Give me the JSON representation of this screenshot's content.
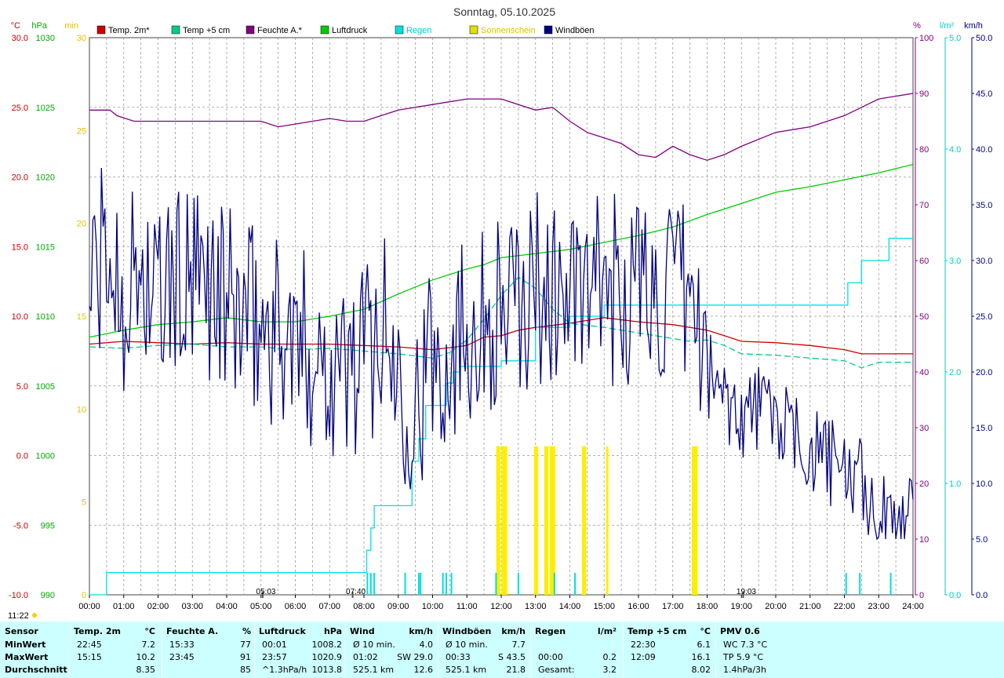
{
  "chart_data": {
    "type": "line",
    "title": "Sonntag, 05.10.2025",
    "x_ticks": [
      "00:00",
      "01:00",
      "02:00",
      "03:00",
      "04:00",
      "05:00",
      "06:00",
      "07:00",
      "08:00",
      "09:00",
      "10:00",
      "11:00",
      "12:00",
      "13:00",
      "14:00",
      "15:00",
      "16:00",
      "17:00",
      "18:00",
      "19:00",
      "20:00",
      "21:00",
      "22:00",
      "23:00",
      "24:00"
    ],
    "axes": {
      "temp": {
        "unit": "°C",
        "color": "#cc0000",
        "range": [
          -10,
          30
        ],
        "ticks": [
          "30.0",
          "25.0",
          "20.0",
          "15.0",
          "10.0",
          "5.0",
          "0.0",
          "-5.0",
          "-10.0"
        ]
      },
      "pressure": {
        "unit": "hPa",
        "color": "#00aa00",
        "range": [
          990,
          1030
        ],
        "ticks": [
          "1030",
          "1025",
          "1020",
          "1015",
          "1010",
          "1005",
          "1000",
          "995",
          "990"
        ]
      },
      "sun": {
        "unit": "min",
        "color": "#e0c000",
        "range": [
          0,
          30
        ],
        "ticks": [
          "30",
          "25",
          "20",
          "15",
          "10",
          "5",
          "0"
        ]
      },
      "humidity": {
        "unit": "%",
        "color": "#800080",
        "range": [
          0,
          100
        ],
        "ticks": [
          "100",
          "90",
          "80",
          "70",
          "60",
          "50",
          "40",
          "30",
          "20",
          "10",
          "0"
        ]
      },
      "rain": {
        "unit": "l/m²",
        "color": "#00cccc",
        "range": [
          0,
          5
        ],
        "ticks": [
          "5.0",
          "4.0",
          "3.0",
          "2.0",
          "1.0",
          "0.0"
        ]
      },
      "wind": {
        "unit": "km/h",
        "color": "#000080",
        "range": [
          0,
          50
        ],
        "ticks": [
          "50.0",
          "45.0",
          "40.0",
          "35.0",
          "30.0",
          "25.0",
          "20.0",
          "15.0",
          "10.0",
          "5.0",
          "0.0"
        ]
      }
    },
    "legend": [
      {
        "name": "Temp. 2m*",
        "color": "#cc0000"
      },
      {
        "name": "Temp +5 cm",
        "color": "#00cc88"
      },
      {
        "name": "Feuchte A.*",
        "color": "#800080"
      },
      {
        "name": "Luftdruck",
        "color": "#00cc00"
      },
      {
        "name": "Regen",
        "color": "#00e0e0"
      },
      {
        "name": "Sonnenschein",
        "color": "#e0e000"
      },
      {
        "name": "Windböen",
        "color": "#000080"
      }
    ],
    "markers": [
      {
        "label": "05:03",
        "hour": 5.05
      },
      {
        "label": "07:40",
        "hour": 7.67
      },
      {
        "label": "19:03",
        "hour": 19.05
      }
    ],
    "moon_time": "11:22",
    "series": [
      {
        "name": "Temp. 2m*",
        "axis": "temp",
        "color": "#cc0000",
        "points": [
          [
            0,
            8.0
          ],
          [
            1,
            8.2
          ],
          [
            2,
            8.1
          ],
          [
            3,
            8.0
          ],
          [
            4,
            8.1
          ],
          [
            5,
            8.0
          ],
          [
            6,
            8.0
          ],
          [
            7,
            8.0
          ],
          [
            8,
            7.9
          ],
          [
            9,
            7.8
          ],
          [
            10,
            7.6
          ],
          [
            11,
            7.9
          ],
          [
            11.5,
            8.5
          ],
          [
            12,
            8.6
          ],
          [
            12.5,
            9.0
          ],
          [
            13,
            9.2
          ],
          [
            14,
            9.5
          ],
          [
            15,
            9.9
          ],
          [
            16,
            9.6
          ],
          [
            17,
            9.4
          ],
          [
            18,
            9.0
          ],
          [
            18.5,
            8.6
          ],
          [
            19,
            8.2
          ],
          [
            20,
            8.1
          ],
          [
            21,
            7.9
          ],
          [
            22,
            7.6
          ],
          [
            22.5,
            7.3
          ],
          [
            23,
            7.3
          ],
          [
            24,
            7.3
          ]
        ]
      },
      {
        "name": "Temp +5 cm",
        "axis": "temp",
        "color": "#00cc88",
        "dashed": true,
        "points": [
          [
            0,
            7.8
          ],
          [
            1,
            7.7
          ],
          [
            2,
            7.9
          ],
          [
            3,
            8.0
          ],
          [
            4,
            7.8
          ],
          [
            5,
            7.8
          ],
          [
            6,
            7.6
          ],
          [
            7,
            7.7
          ],
          [
            8,
            7.5
          ],
          [
            9,
            7.3
          ],
          [
            10,
            7.0
          ],
          [
            10.5,
            7.4
          ],
          [
            11,
            8.3
          ],
          [
            11.5,
            9.8
          ],
          [
            12,
            11.5
          ],
          [
            12.5,
            12.8
          ],
          [
            13,
            12.0
          ],
          [
            13.5,
            10.5
          ],
          [
            14,
            9.5
          ],
          [
            15,
            9.2
          ],
          [
            16,
            8.8
          ],
          [
            17,
            8.4
          ],
          [
            17.5,
            8.2
          ],
          [
            18,
            8.3
          ],
          [
            18.5,
            7.9
          ],
          [
            19,
            7.3
          ],
          [
            20,
            7.2
          ],
          [
            21,
            7.0
          ],
          [
            22,
            6.8
          ],
          [
            22.5,
            6.3
          ],
          [
            23,
            6.7
          ],
          [
            24,
            6.7
          ]
        ]
      },
      {
        "name": "Feuchte A.*",
        "axis": "humidity",
        "color": "#800080",
        "points": [
          [
            0,
            87
          ],
          [
            0.6,
            87
          ],
          [
            0.8,
            86
          ],
          [
            1.3,
            85
          ],
          [
            2,
            85
          ],
          [
            3,
            85
          ],
          [
            4,
            85
          ],
          [
            5,
            85
          ],
          [
            5.5,
            84
          ],
          [
            6,
            84.5
          ],
          [
            6.5,
            85
          ],
          [
            7,
            85.5
          ],
          [
            7.5,
            85
          ],
          [
            8,
            85
          ],
          [
            8.5,
            86
          ],
          [
            9,
            87
          ],
          [
            10,
            88
          ],
          [
            11,
            89
          ],
          [
            12,
            89
          ],
          [
            12.5,
            88
          ],
          [
            13,
            87
          ],
          [
            13.5,
            87.5
          ],
          [
            14,
            85
          ],
          [
            14.5,
            83
          ],
          [
            15,
            82
          ],
          [
            15.5,
            81
          ],
          [
            16,
            79
          ],
          [
            16.5,
            78.5
          ],
          [
            17,
            80.5
          ],
          [
            17.5,
            79
          ],
          [
            18,
            78
          ],
          [
            18.5,
            79
          ],
          [
            19,
            80.5
          ],
          [
            20,
            83
          ],
          [
            21,
            84
          ],
          [
            22,
            86
          ],
          [
            23,
            89
          ],
          [
            24,
            90
          ]
        ]
      },
      {
        "name": "Luftdruck",
        "axis": "pressure",
        "color": "#00cc00",
        "points": [
          [
            0,
            1008.5
          ],
          [
            1,
            1009
          ],
          [
            2,
            1009.4
          ],
          [
            3,
            1009.6
          ],
          [
            4,
            1009.9
          ],
          [
            5,
            1009.6
          ],
          [
            6,
            1009.6
          ],
          [
            7,
            1010
          ],
          [
            8,
            1010.5
          ],
          [
            9,
            1011.6
          ],
          [
            10,
            1012.6
          ],
          [
            11,
            1013.4
          ],
          [
            11.5,
            1013.7
          ],
          [
            12,
            1014.2
          ],
          [
            13,
            1014.5
          ],
          [
            14,
            1014.8
          ],
          [
            15,
            1015.3
          ],
          [
            16,
            1015.8
          ],
          [
            17,
            1016.4
          ],
          [
            18,
            1017.3
          ],
          [
            19,
            1018.1
          ],
          [
            20,
            1018.9
          ],
          [
            21,
            1019.3
          ],
          [
            22,
            1019.8
          ],
          [
            23,
            1020.3
          ],
          [
            24,
            1020.9
          ]
        ]
      },
      {
        "name": "Regen",
        "axis": "rain",
        "color": "#00e0e0",
        "step": true,
        "points": [
          [
            0,
            0.0
          ],
          [
            0.5,
            0.2
          ],
          [
            1,
            0.2
          ],
          [
            8,
            0.2
          ],
          [
            8.08,
            0.4
          ],
          [
            8.2,
            0.6
          ],
          [
            8.3,
            0.8
          ],
          [
            9.2,
            0.8
          ],
          [
            9.4,
            1.2
          ],
          [
            9.6,
            1.4
          ],
          [
            9.8,
            1.7
          ],
          [
            10.4,
            1.9
          ],
          [
            10.6,
            2.0
          ],
          [
            10.8,
            2.05
          ],
          [
            11.5,
            2.05
          ],
          [
            12,
            2.1
          ],
          [
            13,
            2.4
          ],
          [
            14,
            2.5
          ],
          [
            15,
            2.6
          ],
          [
            16,
            2.6
          ],
          [
            19,
            2.6
          ],
          [
            20,
            2.6
          ],
          [
            22,
            2.6
          ],
          [
            22.1,
            2.8
          ],
          [
            22.5,
            3.0
          ],
          [
            23,
            3.0
          ],
          [
            23.3,
            3.2
          ],
          [
            24,
            3.2
          ]
        ]
      },
      {
        "name": "Windböen",
        "axis": "wind",
        "color": "#000080",
        "gusty": true,
        "points": [
          [
            0,
            28
          ],
          [
            0.5,
            30
          ],
          [
            1,
            27
          ],
          [
            1.5,
            29
          ],
          [
            2,
            26
          ],
          [
            2.5,
            28
          ],
          [
            3,
            27
          ],
          [
            3.5,
            28
          ],
          [
            4,
            26
          ],
          [
            4.5,
            25
          ],
          [
            5,
            24
          ],
          [
            5.5,
            24
          ],
          [
            6,
            22
          ],
          [
            6.5,
            22
          ],
          [
            7,
            21
          ],
          [
            7.5,
            20
          ],
          [
            8,
            22
          ],
          [
            8.5,
            24
          ],
          [
            9,
            20
          ],
          [
            9.5,
            17
          ],
          [
            10,
            21
          ],
          [
            10.5,
            22
          ],
          [
            11,
            25
          ],
          [
            11.5,
            24
          ],
          [
            12,
            26
          ],
          [
            12.5,
            25
          ],
          [
            13,
            28
          ],
          [
            13.5,
            27
          ],
          [
            14,
            27
          ],
          [
            14.5,
            26
          ],
          [
            15,
            28
          ],
          [
            15.5,
            27
          ],
          [
            16,
            28
          ],
          [
            16.5,
            27
          ],
          [
            17,
            26
          ],
          [
            17.5,
            27
          ],
          [
            18,
            20
          ],
          [
            18.5,
            18
          ],
          [
            19,
            16
          ],
          [
            19.5,
            17
          ],
          [
            20,
            16
          ],
          [
            20.5,
            14
          ],
          [
            21,
            13
          ],
          [
            21.5,
            12
          ],
          [
            22,
            11
          ],
          [
            22.5,
            10
          ],
          [
            23,
            7
          ],
          [
            23.5,
            6
          ],
          [
            24,
            10
          ]
        ]
      }
    ],
    "sunshine_bars": [
      11.9,
      11.95,
      12.05,
      12.1,
      12.15,
      13.0,
      13.05,
      13.3,
      13.35,
      13.45,
      13.5,
      13.55,
      14.4,
      14.45,
      15.1,
      17.6,
      17.65,
      17.7
    ],
    "rain_spikes": [
      8.1,
      8.2,
      8.3,
      9.2,
      9.6,
      9.65,
      10.3,
      10.4,
      10.55,
      11.85,
      12.5,
      13.55,
      14.15,
      22.05,
      22.45,
      23.35
    ]
  },
  "stats": {
    "headers": [
      {
        "label": "Sensor",
        "unit": ""
      },
      {
        "label": "Temp. 2m",
        "unit": "°C"
      },
      {
        "label": "Feuchte A.",
        "unit": "%"
      },
      {
        "label": "Luftdruck",
        "unit": "hPa"
      },
      {
        "label": "Wind",
        "unit": "km/h"
      },
      {
        "label": "Windböen",
        "unit": "km/h"
      },
      {
        "label": "Regen",
        "unit": "l/m²"
      },
      {
        "label": "Temp +5 cm",
        "unit": "°C"
      },
      {
        "label": "PMV 0.6",
        "unit": ""
      }
    ],
    "rows": [
      {
        "label": "MinWert",
        "cells": [
          [
            "22:45",
            "7.2"
          ],
          [
            "15:33",
            "77"
          ],
          [
            "00:01",
            "1008.2"
          ],
          [
            "Ø 10 min.",
            "4.0"
          ],
          [
            "Ø 10 min.",
            "7.7"
          ],
          [
            "",
            ""
          ],
          [
            "22:30",
            "6.1"
          ],
          [
            "WC 7.3 °C",
            ""
          ]
        ]
      },
      {
        "label": "MaxWert",
        "cells": [
          [
            "15:15",
            "10.2"
          ],
          [
            "23:45",
            "91"
          ],
          [
            "23:57",
            "1020.9"
          ],
          [
            "01:02",
            "SW 29.0"
          ],
          [
            "00:33",
            "S 43.5"
          ],
          [
            "00:00",
            "0.2"
          ],
          [
            "12:09",
            "16.1"
          ],
          [
            "TP 5.9 °C",
            ""
          ]
        ]
      },
      {
        "label": "Durchschnitt",
        "cells": [
          [
            "",
            "8.35"
          ],
          [
            "",
            "85"
          ],
          [
            "^1.3hPa/h",
            "1013.8"
          ],
          [
            "525.1 km",
            "12.6"
          ],
          [
            "525.1 km",
            "21.8"
          ],
          [
            "Gesamt:",
            "3.2"
          ],
          [
            "",
            "8.02"
          ],
          [
            "1.4hPa/3h",
            ""
          ]
        ]
      }
    ]
  }
}
